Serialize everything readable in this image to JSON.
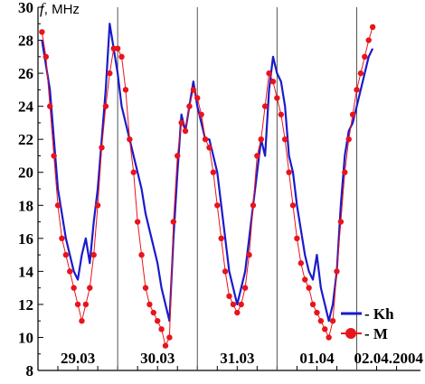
{
  "chart_data": {
    "type": "line",
    "ylabel_prefix": "f",
    "ylabel_unit": ", MHz",
    "ylim": [
      8,
      30
    ],
    "yticks": [
      8,
      10,
      12,
      14,
      16,
      18,
      20,
      22,
      24,
      26,
      28,
      30
    ],
    "xlim": [
      0,
      4.8
    ],
    "day_dividers": [
      1,
      2,
      3,
      4
    ],
    "day_labels": [
      "29.03",
      "30.03",
      "31.03",
      "01.04",
      "02.04.2004"
    ],
    "grid": false,
    "legend_position": "bottom-right",
    "colors": {
      "Kh": "#1a1acc",
      "M": "#e8141c"
    },
    "series": [
      {
        "name": "Kh",
        "style": "line",
        "x": [
          0.05,
          0.1,
          0.15,
          0.2,
          0.25,
          0.3,
          0.35,
          0.4,
          0.45,
          0.5,
          0.55,
          0.6,
          0.65,
          0.7,
          0.75,
          0.8,
          0.85,
          0.9,
          0.95,
          1.0,
          1.05,
          1.1,
          1.15,
          1.2,
          1.25,
          1.3,
          1.35,
          1.4,
          1.45,
          1.5,
          1.55,
          1.6,
          1.65,
          1.7,
          1.75,
          1.8,
          1.85,
          1.9,
          1.95,
          2.0,
          2.05,
          2.1,
          2.15,
          2.2,
          2.25,
          2.3,
          2.35,
          2.4,
          2.45,
          2.5,
          2.55,
          2.6,
          2.65,
          2.7,
          2.75,
          2.8,
          2.85,
          2.9,
          2.95,
          3.0,
          3.05,
          3.1,
          3.15,
          3.2,
          3.25,
          3.3,
          3.35,
          3.4,
          3.45,
          3.5,
          3.55,
          3.6,
          3.65,
          3.7,
          3.75,
          3.8,
          3.85,
          3.9,
          3.95,
          4.0,
          4.05,
          4.1,
          4.15,
          4.2
        ],
        "y": [
          28.0,
          26.5,
          25.0,
          22.0,
          19.0,
          17.5,
          16.0,
          15.0,
          14.0,
          13.5,
          15.0,
          16.0,
          14.5,
          17.0,
          19.0,
          22.0,
          25.0,
          29.0,
          27.5,
          26.0,
          24.0,
          23.0,
          22.0,
          21.0,
          20.0,
          19.0,
          17.5,
          16.5,
          15.5,
          14.5,
          13.0,
          12.0,
          11.0,
          16.0,
          20.0,
          23.5,
          22.5,
          24.0,
          25.5,
          24.0,
          23.0,
          22.0,
          22.0,
          21.0,
          20.0,
          18.0,
          16.0,
          14.0,
          13.0,
          12.0,
          13.0,
          14.0,
          16.0,
          18.0,
          20.0,
          22.0,
          21.0,
          25.0,
          27.0,
          26.0,
          25.5,
          24.0,
          21.0,
          20.0,
          18.0,
          16.5,
          15.0,
          14.0,
          13.5,
          15.0,
          13.0,
          12.0,
          11.0,
          12.0,
          14.0,
          18.0,
          21.0,
          22.5,
          23.0,
          24.0,
          25.0,
          26.0,
          27.0,
          27.5
        ],
        "values_approximate": true
      },
      {
        "name": "M",
        "style": "line-markers",
        "x": [
          0.05,
          0.1,
          0.15,
          0.2,
          0.25,
          0.3,
          0.35,
          0.4,
          0.45,
          0.5,
          0.55,
          0.6,
          0.65,
          0.7,
          0.75,
          0.8,
          0.85,
          0.9,
          0.95,
          1.0,
          1.05,
          1.1,
          1.15,
          1.2,
          1.25,
          1.3,
          1.35,
          1.4,
          1.45,
          1.5,
          1.55,
          1.6,
          1.65,
          1.7,
          1.75,
          1.8,
          1.85,
          1.9,
          1.95,
          2.0,
          2.05,
          2.1,
          2.15,
          2.2,
          2.25,
          2.3,
          2.35,
          2.4,
          2.45,
          2.5,
          2.55,
          2.6,
          2.65,
          2.7,
          2.75,
          2.8,
          2.85,
          2.9,
          2.95,
          3.0,
          3.05,
          3.1,
          3.15,
          3.2,
          3.25,
          3.3,
          3.35,
          3.4,
          3.45,
          3.5,
          3.55,
          3.6,
          3.65,
          3.7,
          3.75,
          3.8,
          3.85,
          3.9,
          3.95,
          4.0,
          4.05,
          4.1,
          4.15,
          4.2
        ],
        "y": [
          28.5,
          27.0,
          24.0,
          21.0,
          18.0,
          16.0,
          15.0,
          14.0,
          13.0,
          12.0,
          11.0,
          12.0,
          13.0,
          15.0,
          18.0,
          21.5,
          24.0,
          26.0,
          27.5,
          27.5,
          27.0,
          25.0,
          22.0,
          20.0,
          17.0,
          15.0,
          13.0,
          12.0,
          11.5,
          11.0,
          10.5,
          9.5,
          10.0,
          17.0,
          21.0,
          23.0,
          22.5,
          24.0,
          25.0,
          24.5,
          23.5,
          22.0,
          21.5,
          20.0,
          18.0,
          16.0,
          14.0,
          12.5,
          12.0,
          11.5,
          12.0,
          13.0,
          15.0,
          18.0,
          21.0,
          22.0,
          24.0,
          26.0,
          25.5,
          24.5,
          23.5,
          22.0,
          20.0,
          18.0,
          16.0,
          14.5,
          13.5,
          13.0,
          12.0,
          11.5,
          11.0,
          10.5,
          10.0,
          11.0,
          14.0,
          17.0,
          20.0,
          22.0,
          23.5,
          25.0,
          26.0,
          27.0,
          28.0,
          28.8
        ],
        "values_approximate": true
      }
    ]
  }
}
